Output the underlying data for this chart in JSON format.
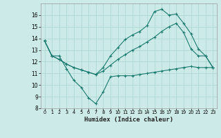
{
  "xlabel": "Humidex (Indice chaleur)",
  "background_color": "#cceae8",
  "grid_color": "#b0d8d5",
  "line_color": "#1a7a6e",
  "ylim": [
    8,
    17
  ],
  "y_ticks": [
    8,
    9,
    10,
    11,
    12,
    13,
    14,
    15,
    16
  ],
  "x_ticks": [
    0,
    1,
    2,
    3,
    4,
    5,
    6,
    7,
    8,
    9,
    10,
    11,
    12,
    13,
    14,
    15,
    16,
    17,
    18,
    19,
    20,
    21,
    22,
    23
  ],
  "x_tick_labels": [
    "0",
    "1",
    "2",
    "3",
    "4",
    "5",
    "6",
    "7",
    "8",
    "9",
    "10",
    "11",
    "12",
    "13",
    "14",
    "15",
    "16",
    "17",
    "18",
    "19",
    "20",
    "21",
    "22",
    "23"
  ],
  "series": [
    {
      "x": [
        0,
        1,
        2,
        3,
        4,
        5,
        6,
        7,
        8,
        9,
        10,
        11,
        12,
        13,
        14,
        15,
        16,
        17,
        18,
        19,
        20,
        21,
        22,
        23
      ],
      "y": [
        13.8,
        12.5,
        12.5,
        11.4,
        10.4,
        9.8,
        8.9,
        8.4,
        9.4,
        10.7,
        10.8,
        10.8,
        10.8,
        10.9,
        11.0,
        11.1,
        11.2,
        11.3,
        11.4,
        11.5,
        11.6,
        11.5,
        11.5,
        11.5
      ]
    },
    {
      "x": [
        0,
        1,
        2,
        3,
        4,
        5,
        6,
        7,
        8,
        9,
        10,
        11,
        12,
        13,
        14,
        15,
        16,
        17,
        18,
        19,
        20,
        21,
        22,
        23
      ],
      "y": [
        13.8,
        12.5,
        12.2,
        11.8,
        11.5,
        11.3,
        11.1,
        10.9,
        11.2,
        11.7,
        12.2,
        12.6,
        13.0,
        13.3,
        13.7,
        14.1,
        14.6,
        15.0,
        15.3,
        14.5,
        13.1,
        12.5,
        12.5,
        11.5
      ]
    },
    {
      "x": [
        0,
        1,
        2,
        3,
        4,
        5,
        6,
        7,
        8,
        9,
        10,
        11,
        12,
        13,
        14,
        15,
        16,
        17,
        18,
        19,
        20,
        21,
        22,
        23
      ],
      "y": [
        13.8,
        12.5,
        12.2,
        11.8,
        11.5,
        11.3,
        11.1,
        10.9,
        11.5,
        12.5,
        13.2,
        13.9,
        14.3,
        14.6,
        15.1,
        16.3,
        16.5,
        16.0,
        16.1,
        15.3,
        14.4,
        13.1,
        12.5,
        11.5
      ]
    }
  ]
}
